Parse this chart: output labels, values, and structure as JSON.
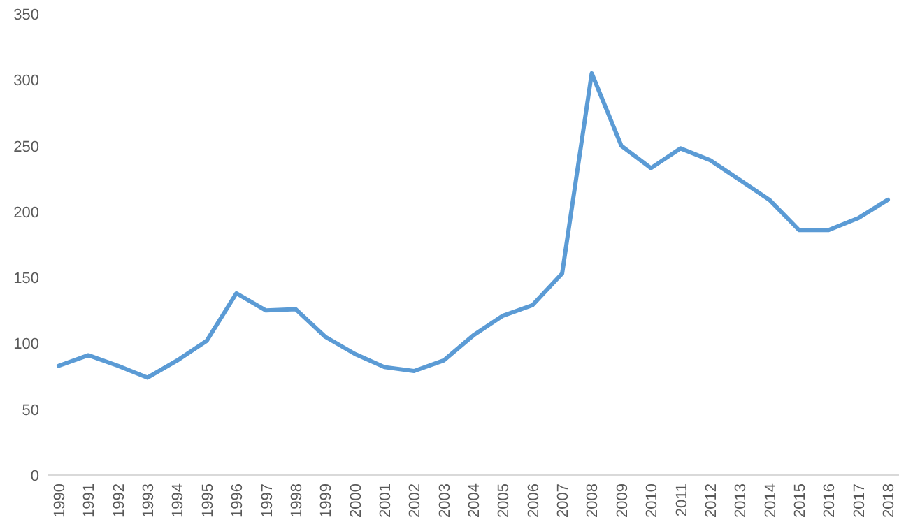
{
  "chart_data": {
    "type": "line",
    "categories": [
      "1990",
      "1991",
      "1992",
      "1993",
      "1994",
      "1995",
      "1996",
      "1997",
      "1998",
      "1999",
      "2000",
      "2001",
      "2002",
      "2003",
      "2004",
      "2005",
      "2006",
      "2007",
      "2008",
      "2009",
      "2010",
      "2011",
      "2012",
      "2013",
      "2014",
      "2015",
      "2016",
      "2017",
      "2018"
    ],
    "series": [
      {
        "color": "#5b9bd5",
        "values": [
          83,
          91,
          83,
          74,
          87,
          102,
          138,
          125,
          126,
          105,
          92,
          82,
          79,
          87,
          106,
          121,
          129,
          153,
          305,
          250,
          233,
          248,
          239,
          224,
          209,
          186,
          186,
          195,
          209
        ]
      }
    ],
    "ylim": [
      0,
      350
    ],
    "yticks": [
      0,
      50,
      100,
      150,
      200,
      250,
      300,
      350
    ],
    "grid": false,
    "marker": "none",
    "line_style": "solid"
  }
}
